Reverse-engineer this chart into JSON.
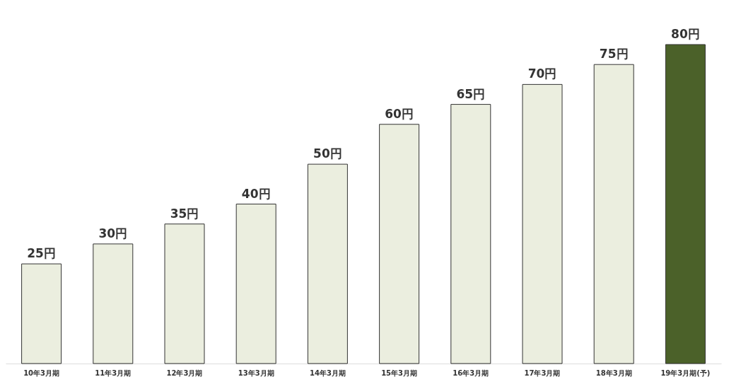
{
  "chart_data": {
    "type": "bar",
    "categories": [
      "10年3月期",
      "11年3月期",
      "12年3月期",
      "13年3月期",
      "14年3月期",
      "15年3月期",
      "16年3月期",
      "17年3月期",
      "18年3月期",
      "19年3月期(予)"
    ],
    "values": [
      25,
      30,
      35,
      40,
      50,
      60,
      65,
      70,
      75,
      80
    ],
    "colors": [
      "#ebeedf",
      "#ebeedf",
      "#ebeedf",
      "#ebeedf",
      "#ebeedf",
      "#ebeedf",
      "#ebeedf",
      "#ebeedf",
      "#ebeedf",
      "#4b6129"
    ],
    "value_labels": [
      "25円",
      "30円",
      "35円",
      "40円",
      "50円",
      "60円",
      "65円",
      "70円",
      "75円",
      "80円"
    ],
    "grid": false
  }
}
